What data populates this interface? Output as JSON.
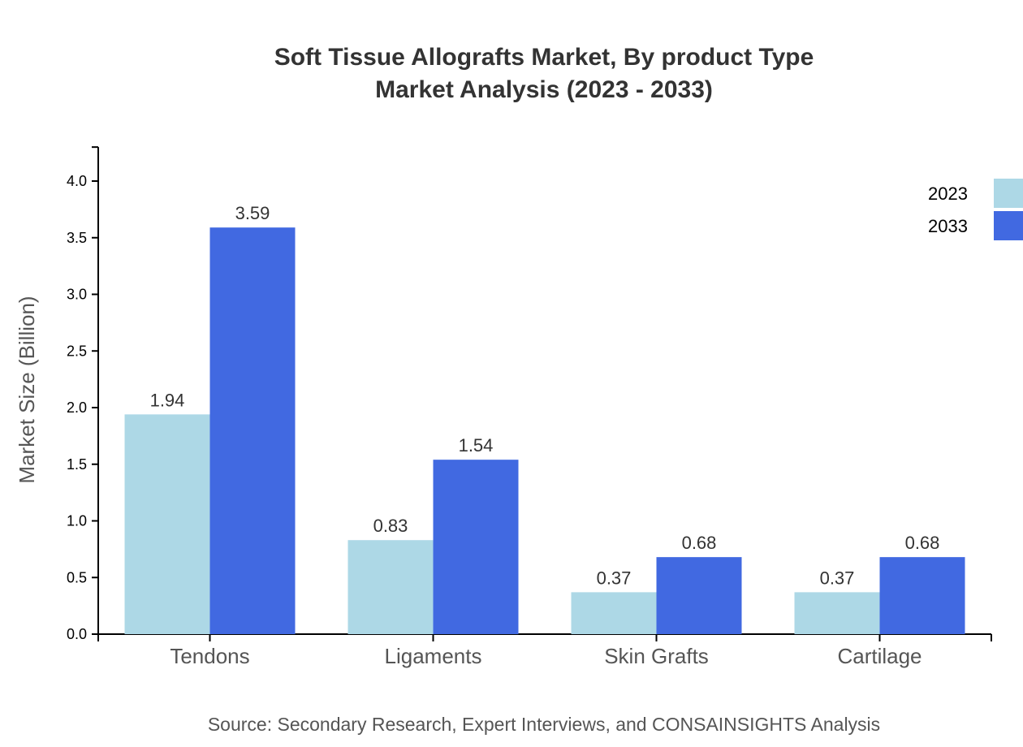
{
  "chart_data": {
    "type": "bar",
    "title": "Soft Tissue Allografts Market, By product Type",
    "subtitle": "Market Analysis (2023 - 2033)",
    "xlabel": "",
    "ylabel": "Market Size (Billion)",
    "ylim": [
      0,
      4.3
    ],
    "yticks": [
      "0.0",
      "0.5",
      "1.0",
      "1.5",
      "2.0",
      "2.5",
      "3.0",
      "3.5",
      "4.0"
    ],
    "categories": [
      "Tendons",
      "Ligaments",
      "Skin Grafts",
      "Cartilage"
    ],
    "series": [
      {
        "name": "2023",
        "color": "#add8e6",
        "values": [
          1.94,
          0.83,
          0.37,
          0.37
        ]
      },
      {
        "name": "2033",
        "color": "#4169e1",
        "values": [
          3.59,
          1.54,
          0.68,
          0.68
        ]
      }
    ],
    "legend": "top-right",
    "grid": false,
    "source": "Source: Secondary Research, Expert Interviews, and CONSAINSIGHTS Analysis"
  }
}
